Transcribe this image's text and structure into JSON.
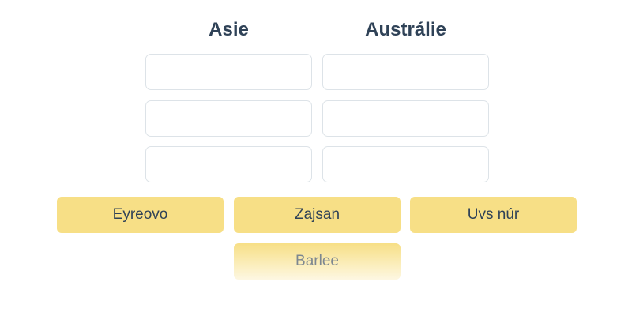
{
  "columns": [
    {
      "title": "Asie"
    },
    {
      "title": "Austrálie"
    }
  ],
  "chips": [
    {
      "label": "Eyreovo"
    },
    {
      "label": "Zajsan"
    },
    {
      "label": "Uvs núr"
    },
    {
      "label": "Barlee"
    }
  ],
  "colors": {
    "chip": "#f7df86",
    "heading": "#2f4257",
    "slot_border": "#dde3e8"
  }
}
